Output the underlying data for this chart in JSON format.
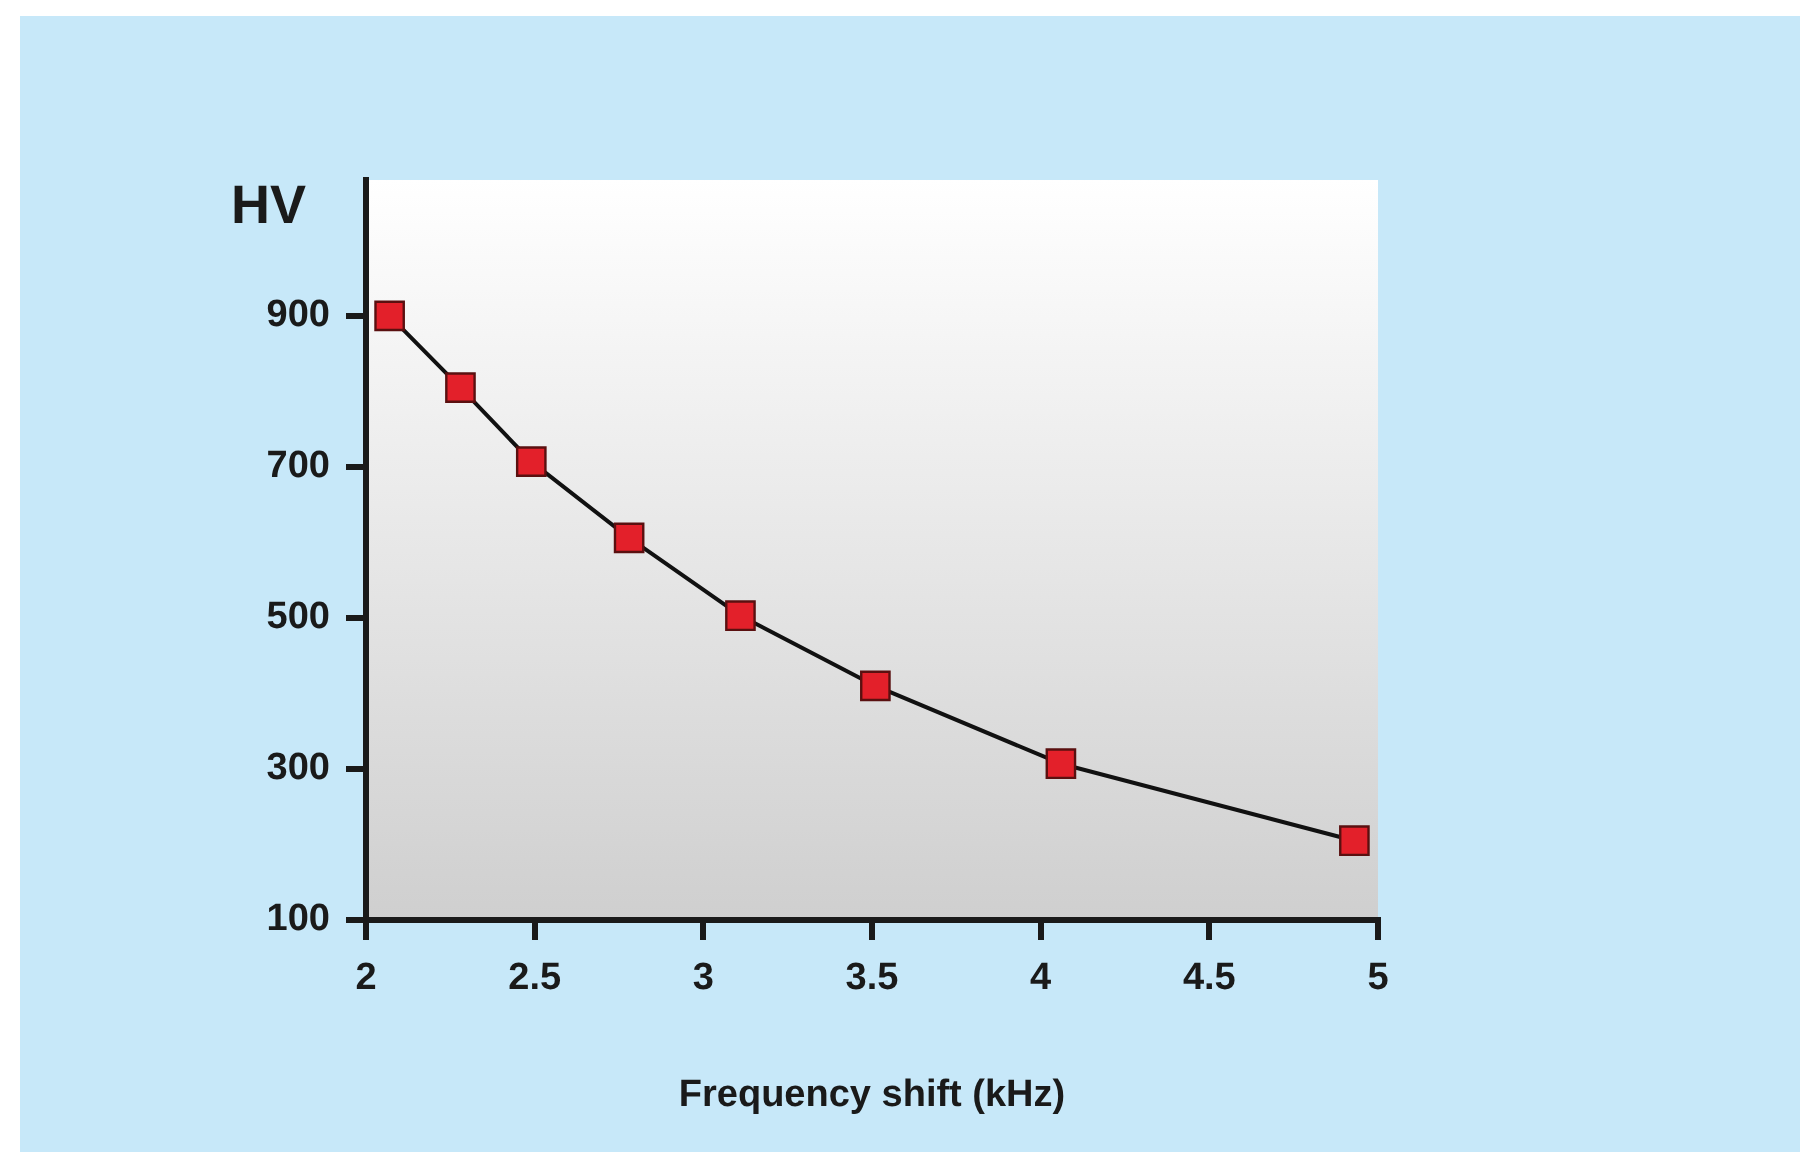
{
  "chart_data": {
    "type": "line",
    "xlabel": "Frequency shift (kHz)",
    "ylabel": "HV",
    "x": [
      2.07,
      2.28,
      2.49,
      2.78,
      3.11,
      3.51,
      4.06,
      4.93
    ],
    "series": [
      {
        "color": "#e3202a",
        "values": [
          900,
          805,
          707,
          606,
          503,
          410,
          307,
          205
        ]
      }
    ],
    "xlim": [
      2,
      5
    ],
    "xticks": [
      2,
      2.5,
      3,
      3.5,
      4,
      4.5,
      5
    ],
    "ylim": [
      100,
      1080
    ],
    "yticks": [
      100,
      300,
      500,
      700,
      900
    ],
    "grid": false,
    "legend": false,
    "marker": "square",
    "line_style": "solid"
  }
}
